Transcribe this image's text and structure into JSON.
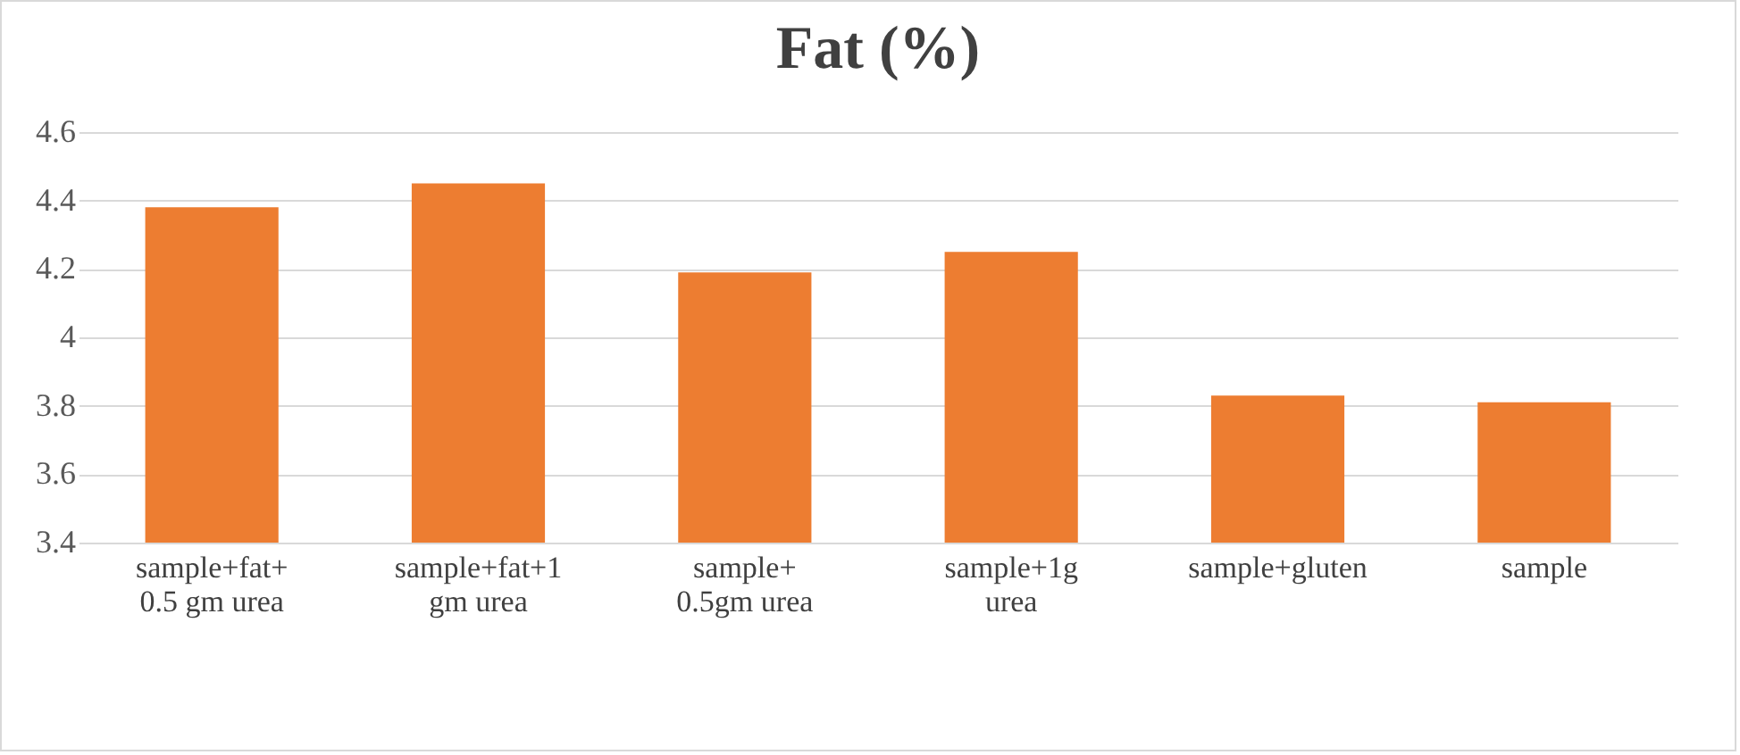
{
  "chart_data": {
    "type": "bar",
    "title": "Fat (%)",
    "categories": [
      "sample+fat+ 0.5 gm urea",
      "sample+fat+1 gm urea",
      "sample+ 0.5gm urea",
      "sample+1g urea",
      "sample+gluten",
      "sample"
    ],
    "values": [
      4.38,
      4.45,
      4.19,
      4.25,
      3.83,
      3.81
    ],
    "color": "#ed7d31",
    "ylim": [
      3.4,
      4.6
    ],
    "yticks": [
      3.4,
      3.6,
      3.8,
      4,
      4.2,
      4.4,
      4.6
    ],
    "grid": "y"
  }
}
